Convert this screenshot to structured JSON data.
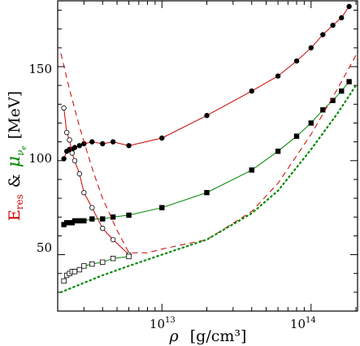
{
  "chart_data": {
    "type": "line",
    "xscale": "log",
    "xlim": [
      2000000000000.0,
      205000000000000.0
    ],
    "ylim": [
      20,
      185
    ],
    "grid": false,
    "xlabel": {
      "symbol": "ρ",
      "units": "[g/cm³]"
    },
    "ylabel": {
      "part1": "E",
      "part1_sub": "res",
      "amp": "&",
      "part2": "μ",
      "part2_sub": "ν",
      "part2_subsub": "e",
      "units": "[MeV]"
    },
    "yticks": [
      "50",
      "100",
      "150"
    ],
    "xticks": [
      {
        "base": "10",
        "exp": "13",
        "value": 10000000000000.0
      },
      {
        "base": "10",
        "exp": "14",
        "value": 100000000000000.0
      }
    ],
    "series": [
      {
        "id": "eres_filled",
        "color": "#cc0000",
        "marker": "filled-circle",
        "line": "solid",
        "x": [
          2200000000000.0,
          2300000000000.0,
          2400000000000.0,
          2500000000000.0,
          2600000000000.0,
          2800000000000.0,
          3000000000000.0,
          3400000000000.0,
          4000000000000.0,
          4700000000000.0,
          6000000000000.0,
          10000000000000.0,
          20000000000000.0,
          40000000000000.0,
          60000000000000.0,
          80000000000000.0,
          100000000000000.0,
          120000000000000.0,
          140000000000000.0,
          160000000000000.0,
          180000000000000.0
        ],
        "y": [
          101,
          105,
          106,
          106,
          107,
          108,
          109,
          110,
          109,
          110,
          108,
          112,
          124,
          137,
          145,
          153,
          160,
          167,
          172,
          176,
          182
        ]
      },
      {
        "id": "eres_open",
        "color": "#cc0000",
        "marker": "open-circle",
        "line": "solid",
        "x": [
          2200000000000.0,
          2300000000000.0,
          2400000000000.0,
          2500000000000.0,
          2600000000000.0,
          2800000000000.0,
          3000000000000.0,
          3400000000000.0,
          4000000000000.0,
          4700000000000.0,
          6000000000000.0
        ],
        "y": [
          128,
          115,
          111,
          104,
          100,
          93,
          83,
          75,
          64,
          58,
          50
        ]
      },
      {
        "id": "mu_filled",
        "color": "#008800",
        "marker": "filled-square",
        "line": "solid",
        "x": [
          2200000000000.0,
          2300000000000.0,
          2400000000000.0,
          2500000000000.0,
          2600000000000.0,
          2800000000000.0,
          3000000000000.0,
          3400000000000.0,
          4000000000000.0,
          4700000000000.0,
          6000000000000.0,
          10000000000000.0,
          20000000000000.0,
          40000000000000.0,
          60000000000000.0,
          80000000000000.0,
          100000000000000.0,
          120000000000000.0,
          140000000000000.0,
          160000000000000.0,
          180000000000000.0
        ],
        "y": [
          66,
          67,
          67,
          67,
          68,
          68,
          68,
          69,
          69,
          70,
          71,
          75,
          83,
          95,
          105,
          113,
          120,
          127,
          132,
          137,
          142
        ]
      },
      {
        "id": "mu_open",
        "color": "#008800",
        "marker": "open-square",
        "line": "solid",
        "x": [
          2200000000000.0,
          2300000000000.0,
          2400000000000.0,
          2500000000000.0,
          2600000000000.0,
          2800000000000.0,
          3000000000000.0,
          3400000000000.0,
          4000000000000.0,
          4700000000000.0,
          6000000000000.0
        ],
        "y": [
          36,
          39,
          40,
          41,
          41,
          42,
          44,
          45,
          46,
          48,
          49
        ]
      },
      {
        "id": "eres_dashed",
        "color": "#cc0000",
        "marker": "none",
        "line": "dashed",
        "x": [
          2100000000000.0,
          2400000000000.0,
          2800000000000.0,
          3400000000000.0,
          4000000000000.0,
          5000000000000.0,
          6000000000000.0,
          8000000000000.0,
          10000000000000.0,
          20000000000000.0,
          40000000000000.0,
          60000000000000.0,
          100000000000000.0,
          150000000000000.0,
          200000000000000.0
        ],
        "y": [
          157,
          138,
          118,
          96,
          80,
          63,
          51,
          51,
          53,
          58,
          73,
          88,
          114,
          138,
          156
        ]
      },
      {
        "id": "mu_dotted",
        "color": "#008800",
        "marker": "none",
        "line": "dotted",
        "x": [
          2100000000000.0,
          3000000000000.0,
          4000000000000.0,
          6000000000000.0,
          10000000000000.0,
          20000000000000.0,
          40000000000000.0,
          60000000000000.0,
          100000000000000.0,
          150000000000000.0,
          200000000000000.0
        ],
        "y": [
          30,
          35,
          39,
          44,
          50,
          58,
          72,
          84,
          106,
          125,
          140
        ]
      }
    ]
  }
}
